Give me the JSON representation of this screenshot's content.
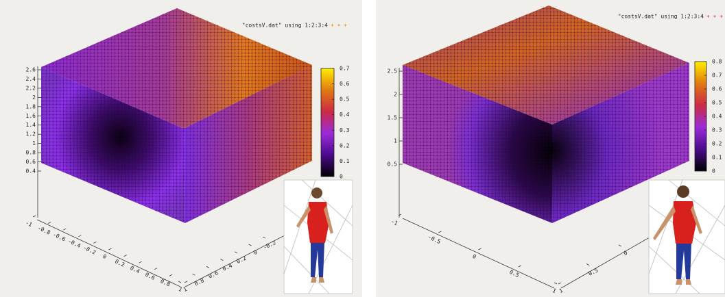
{
  "chart_data": [
    {
      "type": "scatter3d",
      "legend": "\"costsV.dat\" using 1:2:3:4",
      "xlim": [
        -1,
        1
      ],
      "xticks": [
        -1,
        -0.8,
        -0.6,
        -0.4,
        -0.2,
        0,
        0.2,
        0.4,
        0.6,
        0.8,
        1
      ],
      "ylim": [
        -1,
        1
      ],
      "yticks": [
        1,
        0.8,
        0.6,
        0.4,
        0.2,
        0,
        -0.2
      ],
      "zlim": [
        0.4,
        2.6
      ],
      "zticks": [
        2.6,
        2.4,
        2.2,
        2,
        1.8,
        1.6,
        1.4,
        1.2,
        1,
        0.8,
        0.6,
        0.4
      ],
      "cblim": [
        0,
        0.7
      ],
      "cbticks": [
        0.7,
        0.6,
        0.5,
        0.4,
        0.3,
        0.2,
        0.1,
        0
      ]
    },
    {
      "type": "scatter3d",
      "legend": "\"costsV.dat\" using 1:2:3:4",
      "xlim": [
        -1,
        1
      ],
      "xticks": [
        -1,
        -0.5,
        0,
        0.5,
        1
      ],
      "ylim": [
        -1,
        1
      ],
      "yticks": [
        1,
        0.5,
        0
      ],
      "zlim": [
        0.5,
        2.5
      ],
      "zticks": [
        2.5,
        2,
        1.5,
        1,
        0.5
      ],
      "cblim": [
        0,
        0.8
      ],
      "cbticks": [
        0.8,
        0.7,
        0.6,
        0.5,
        0.4,
        0.3,
        0.2,
        0.1,
        0
      ]
    }
  ]
}
